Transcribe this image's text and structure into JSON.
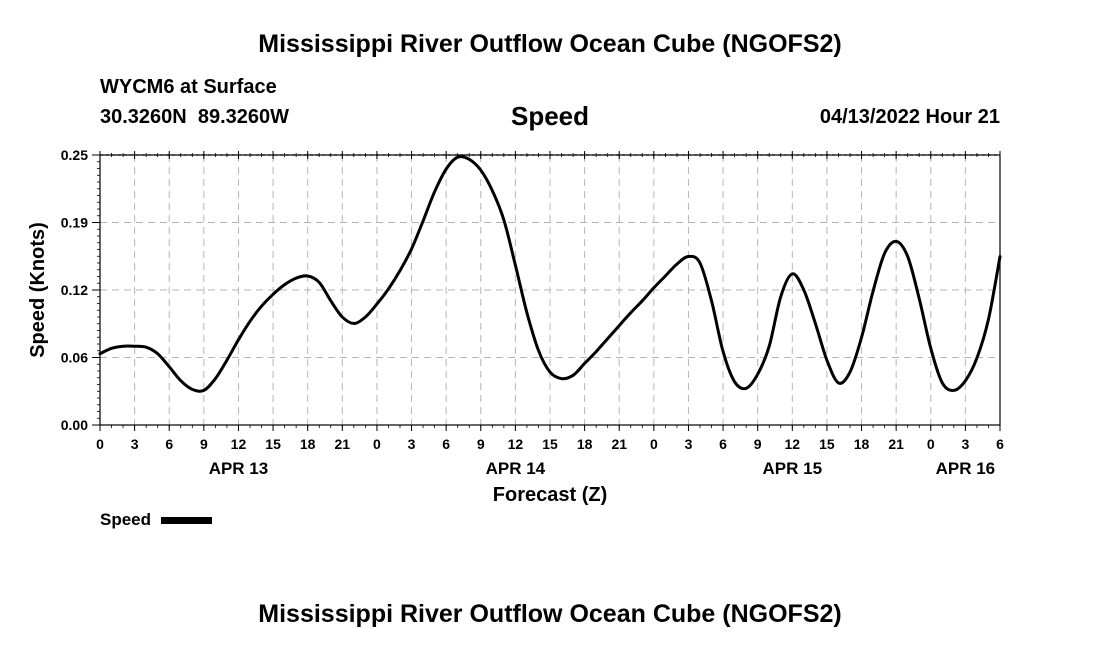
{
  "header": {
    "title": "Mississippi River Outflow Ocean Cube (NGOFS2)",
    "station": "WYCM6 at Surface",
    "coords": "30.3260N  89.3260W",
    "variable": "Speed",
    "datetime": "04/13/2022 Hour 21"
  },
  "footer": {
    "title": "Mississippi River Outflow Ocean Cube (NGOFS2)"
  },
  "chart_data": {
    "type": "line",
    "title": "Speed",
    "xlabel": "Forecast (Z)",
    "ylabel": "Speed (Knots)",
    "ylim": [
      0,
      0.25
    ],
    "y_ticks": [
      "0.00",
      "0.06",
      "0.12",
      "0.19",
      "0.25"
    ],
    "y_tick_values": [
      0,
      0.0625,
      0.125,
      0.1875,
      0.25
    ],
    "xlim": [
      0,
      78
    ],
    "x_ticks": [
      "0",
      "3",
      "6",
      "9",
      "12",
      "15",
      "18",
      "21",
      "0",
      "3",
      "6",
      "9",
      "12",
      "15",
      "18",
      "21",
      "0",
      "3",
      "6",
      "9",
      "12",
      "15",
      "18",
      "21",
      "0",
      "3",
      "6"
    ],
    "x_tick_hours": [
      0,
      3,
      6,
      9,
      12,
      15,
      18,
      21,
      24,
      27,
      30,
      33,
      36,
      39,
      42,
      45,
      48,
      51,
      54,
      57,
      60,
      63,
      66,
      69,
      72,
      75,
      78
    ],
    "date_labels": [
      {
        "label": "APR 13",
        "hour": 12
      },
      {
        "label": "APR 14",
        "hour": 36
      },
      {
        "label": "APR 15",
        "hour": 60
      },
      {
        "label": "APR 16",
        "hour": 75
      }
    ],
    "legend": {
      "label": "Speed",
      "placement": "bottom-left"
    },
    "grid": true,
    "series": [
      {
        "name": "Speed",
        "x": [
          0,
          1,
          2,
          3,
          4,
          5,
          6,
          7,
          8,
          9,
          10,
          11,
          12,
          13,
          14,
          15,
          16,
          17,
          18,
          19,
          20,
          21,
          22,
          23,
          24,
          25,
          26,
          27,
          28,
          29,
          30,
          31,
          32,
          33,
          34,
          35,
          36,
          37,
          38,
          39,
          40,
          41,
          42,
          43,
          44,
          45,
          46,
          47,
          48,
          49,
          50,
          51,
          52,
          53,
          54,
          55,
          56,
          57,
          58,
          59,
          60,
          61,
          62,
          63,
          64,
          65,
          66,
          67,
          68,
          69,
          70,
          71,
          72,
          73,
          74,
          75,
          76,
          77,
          78
        ],
        "values": [
          0.066,
          0.071,
          0.073,
          0.073,
          0.072,
          0.066,
          0.054,
          0.041,
          0.033,
          0.032,
          0.043,
          0.06,
          0.079,
          0.096,
          0.11,
          0.121,
          0.13,
          0.136,
          0.138,
          0.132,
          0.115,
          0.1,
          0.094,
          0.1,
          0.112,
          0.126,
          0.143,
          0.163,
          0.189,
          0.216,
          0.237,
          0.248,
          0.246,
          0.236,
          0.217,
          0.19,
          0.148,
          0.104,
          0.069,
          0.049,
          0.043,
          0.046,
          0.057,
          0.068,
          0.08,
          0.092,
          0.104,
          0.115,
          0.127,
          0.138,
          0.149,
          0.156,
          0.15,
          0.115,
          0.068,
          0.04,
          0.034,
          0.047,
          0.073,
          0.119,
          0.14,
          0.125,
          0.094,
          0.06,
          0.039,
          0.049,
          0.081,
          0.124,
          0.159,
          0.17,
          0.156,
          0.117,
          0.071,
          0.039,
          0.032,
          0.041,
          0.062,
          0.098,
          0.156
        ]
      }
    ]
  }
}
